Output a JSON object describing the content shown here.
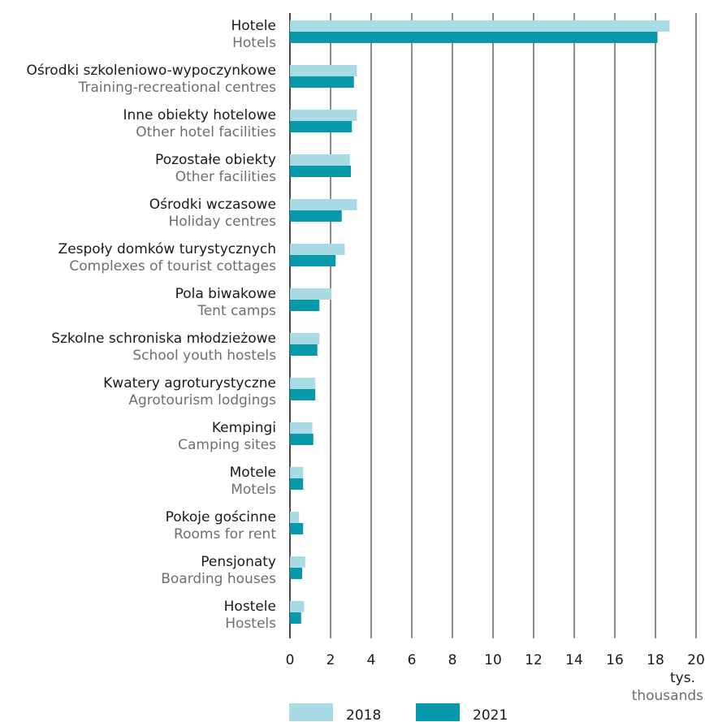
{
  "chart_data": {
    "type": "bar",
    "orientation": "horizontal",
    "categories": [
      {
        "pl": "Hotele",
        "en": "Hotels"
      },
      {
        "pl": "Ośrodki szkoleniowo-wypoczynkowe",
        "en": "Training-recreational centres"
      },
      {
        "pl": "Inne obiekty hotelowe",
        "en": "Other hotel facilities"
      },
      {
        "pl": "Pozostałe obiekty",
        "en": "Other facilities"
      },
      {
        "pl": "Ośrodki wczasowe",
        "en": "Holiday centres"
      },
      {
        "pl": "Zespoły domków turystycznych",
        "en": "Complexes of tourist cottages"
      },
      {
        "pl": "Pola biwakowe",
        "en": "Tent camps"
      },
      {
        "pl": "Szkolne schroniska młodzieżowe",
        "en": "School youth hostels"
      },
      {
        "pl": "Kwatery agroturystyczne",
        "en": "Agrotourism lodgings"
      },
      {
        "pl": "Kempingi",
        "en": "Camping sites"
      },
      {
        "pl": "Motele",
        "en": "Motels"
      },
      {
        "pl": "Pokoje gościnne",
        "en": "Rooms for rent"
      },
      {
        "pl": "Pensjonaty",
        "en": "Boarding houses"
      },
      {
        "pl": "Hostele",
        "en": "Hostels"
      }
    ],
    "series": [
      {
        "name": "2018",
        "color": "#a8dbe3",
        "values": [
          18.7,
          3.3,
          3.3,
          2.95,
          3.3,
          2.7,
          2.05,
          1.45,
          1.25,
          1.1,
          0.65,
          0.45,
          0.75,
          0.7
        ]
      },
      {
        "name": "2021",
        "color": "#0798aa",
        "values": [
          18.1,
          3.15,
          3.05,
          3.0,
          2.55,
          2.25,
          1.45,
          1.35,
          1.25,
          1.15,
          0.65,
          0.65,
          0.6,
          0.55
        ]
      }
    ],
    "xticks": [
      "0",
      "2",
      "4",
      "6",
      "8",
      "10",
      "12",
      "14",
      "16",
      "18",
      "20"
    ],
    "xlim": [
      0,
      20
    ],
    "xlabel_pl": "tys.",
    "xlabel_en": "thousands",
    "grid": true,
    "legend_position": "bottom"
  }
}
